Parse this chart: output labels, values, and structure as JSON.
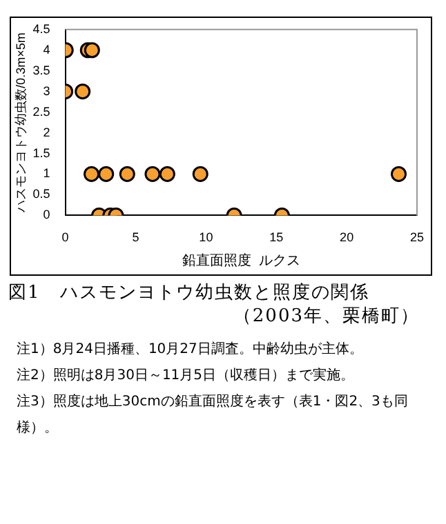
{
  "chart_data": {
    "type": "scatter",
    "title": "図1　ハスモンヨトウ幼虫数と照度の関係",
    "subtitle": "（2003年、栗橋町）",
    "xlabel": "鉛直面照度  ルクス",
    "ylabel": "ハスモンヨトウ幼虫数/0.3m×5m",
    "series": [
      {
        "color": "#f7a030",
        "x": [
          0.03,
          1.6,
          1.9,
          0,
          1.23,
          1.86,
          2.9,
          4.4,
          6.2,
          7.25,
          9.6,
          23.7,
          2.4,
          3.2,
          3.6,
          12.0,
          15.4
        ],
        "values": [
          4,
          4,
          4,
          3,
          3,
          1,
          1,
          1,
          1,
          1,
          1,
          1,
          0,
          0,
          0,
          0,
          0
        ]
      }
    ],
    "xlim": [
      0,
      25
    ],
    "xticks": [
      0,
      5,
      10,
      15,
      20,
      25
    ],
    "ylim": [
      0,
      4.5
    ],
    "yticks": [
      0,
      0.5,
      1,
      1.5,
      2,
      2.5,
      3,
      3.5,
      4,
      4.5
    ],
    "grid": false,
    "legend": false,
    "marker": "circle",
    "annotations": [
      "注1）8月24日播種、10月27日調査。中齢幼虫が主体。",
      "注2）照明は8月30日～11月5日（収穫日）まで実施。",
      "注3）照度は地上30cmの鉛直面照度を表す（表1・図2、3も同様）。"
    ]
  }
}
